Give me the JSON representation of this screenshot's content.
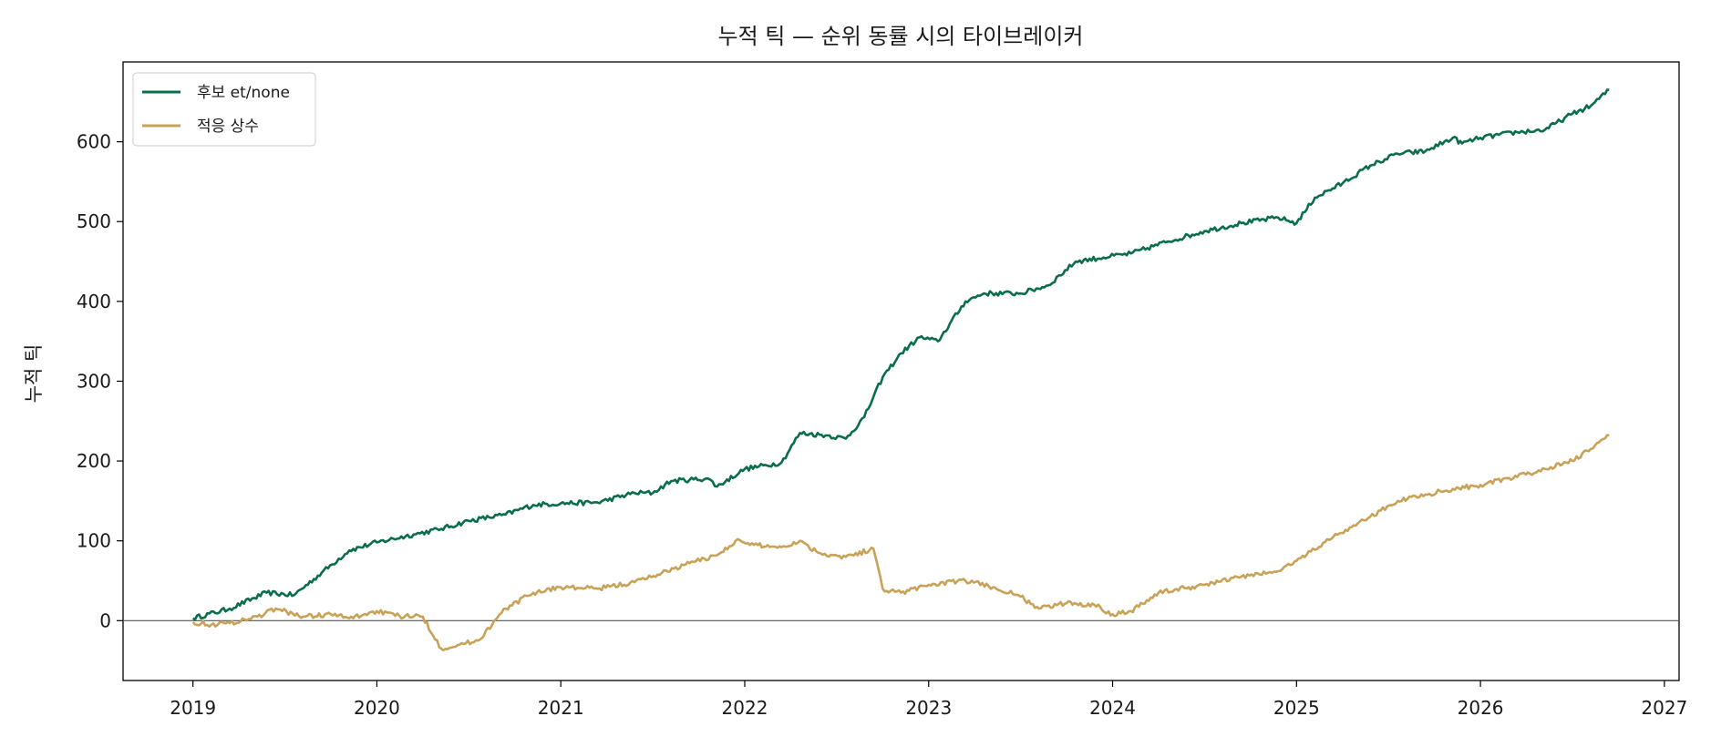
{
  "chart_data": {
    "type": "line",
    "title": "누적 틱 — 순위 동률 시의 타이브레이커",
    "xlabel": "",
    "ylabel": "누적 틱",
    "xlim": [
      2018.62,
      2027.08
    ],
    "ylim": [
      -75,
      700
    ],
    "x_ticks": [
      2019,
      2020,
      2021,
      2022,
      2023,
      2024,
      2025,
      2026,
      2027
    ],
    "y_ticks": [
      0,
      100,
      200,
      300,
      400,
      500,
      600
    ],
    "reference_line_y": 0,
    "grid": false,
    "legend_position": "top-left",
    "series": [
      {
        "name": "후보 et/none",
        "color": "#0a6e4a",
        "x": [
          2019.0,
          2019.2,
          2019.4,
          2019.55,
          2019.7,
          2019.85,
          2020.0,
          2020.2,
          2020.35,
          2020.5,
          2020.7,
          2020.85,
          2021.0,
          2021.2,
          2021.4,
          2021.5,
          2021.6,
          2021.8,
          2021.85,
          2022.0,
          2022.2,
          2022.3,
          2022.45,
          2022.55,
          2022.65,
          2022.75,
          2022.85,
          2022.95,
          2023.05,
          2023.2,
          2023.3,
          2023.5,
          2023.65,
          2023.8,
          2023.95,
          2024.1,
          2024.3,
          2024.5,
          2024.7,
          2024.9,
          2025.0,
          2025.1,
          2025.25,
          2025.4,
          2025.55,
          2025.7,
          2025.85,
          2025.9,
          2026.0,
          2026.2,
          2026.35,
          2026.5,
          2026.6,
          2026.7
        ],
        "y": [
          3,
          15,
          35,
          32,
          60,
          88,
          98,
          108,
          115,
          125,
          133,
          145,
          147,
          148,
          160,
          160,
          175,
          178,
          168,
          190,
          198,
          235,
          232,
          228,
          255,
          305,
          335,
          355,
          350,
          400,
          410,
          410,
          420,
          450,
          455,
          460,
          475,
          488,
          498,
          505,
          498,
          530,
          548,
          570,
          585,
          588,
          605,
          598,
          605,
          612,
          615,
          635,
          645,
          665
        ]
      },
      {
        "name": "적응 상수",
        "color": "#c8a256",
        "x": [
          2019.0,
          2019.1,
          2019.2,
          2019.35,
          2019.45,
          2019.6,
          2019.75,
          2019.85,
          2020.0,
          2020.1,
          2020.2,
          2020.25,
          2020.35,
          2020.45,
          2020.55,
          2020.7,
          2020.85,
          2021.0,
          2021.2,
          2021.4,
          2021.55,
          2021.7,
          2021.85,
          2021.95,
          2022.05,
          2022.2,
          2022.3,
          2022.4,
          2022.55,
          2022.7,
          2022.75,
          2022.85,
          2023.0,
          2023.2,
          2023.35,
          2023.5,
          2023.6,
          2023.75,
          2023.9,
          2024.0,
          2024.1,
          2024.25,
          2024.5,
          2024.7,
          2024.9,
          2025.0,
          2025.2,
          2025.4,
          2025.55,
          2025.7,
          2025.85,
          2026.0,
          2026.2,
          2026.35,
          2026.5,
          2026.6,
          2026.7
        ],
        "y": [
          -2,
          -5,
          -3,
          5,
          15,
          5,
          8,
          3,
          12,
          6,
          5,
          5,
          -35,
          -30,
          -25,
          15,
          35,
          42,
          40,
          48,
          60,
          72,
          82,
          100,
          95,
          92,
          100,
          85,
          80,
          90,
          40,
          35,
          45,
          50,
          42,
          30,
          15,
          22,
          20,
          8,
          12,
          35,
          45,
          55,
          62,
          75,
          105,
          130,
          150,
          158,
          165,
          170,
          180,
          190,
          200,
          215,
          232
        ]
      }
    ]
  }
}
